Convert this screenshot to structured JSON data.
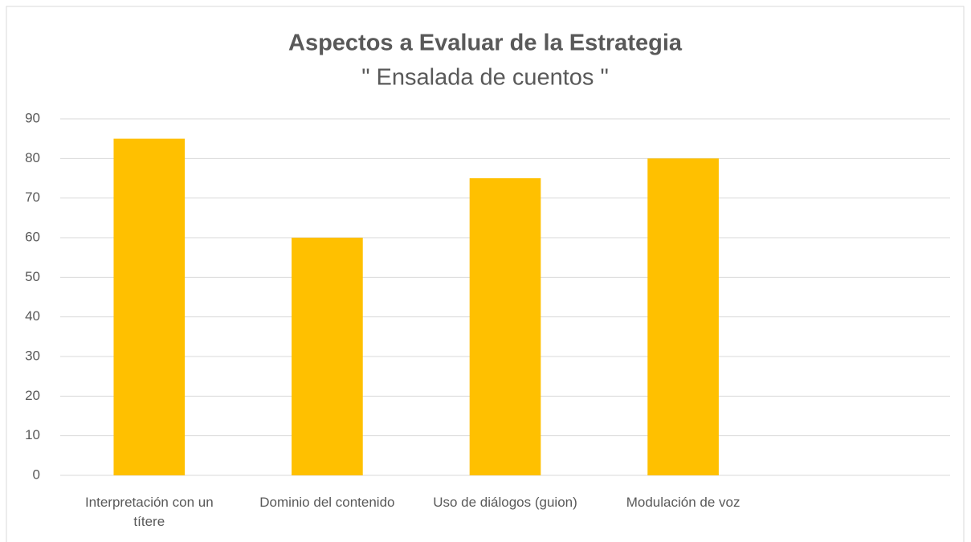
{
  "chart_data": {
    "type": "bar",
    "title": "Aspectos a Evaluar de la Estrategia",
    "subtitle": "\" Ensalada de cuentos \"",
    "categories": [
      "Interpretación con un títere",
      "Dominio del contenido",
      "Uso de diálogos (guion)",
      "Modulación de voz",
      null
    ],
    "values": [
      85,
      60,
      75,
      80,
      null
    ],
    "color": "#ffc000",
    "ylim": [
      0,
      90
    ],
    "yticks": [
      0,
      10,
      20,
      30,
      40,
      50,
      60,
      70,
      80,
      90
    ],
    "grid": true
  }
}
